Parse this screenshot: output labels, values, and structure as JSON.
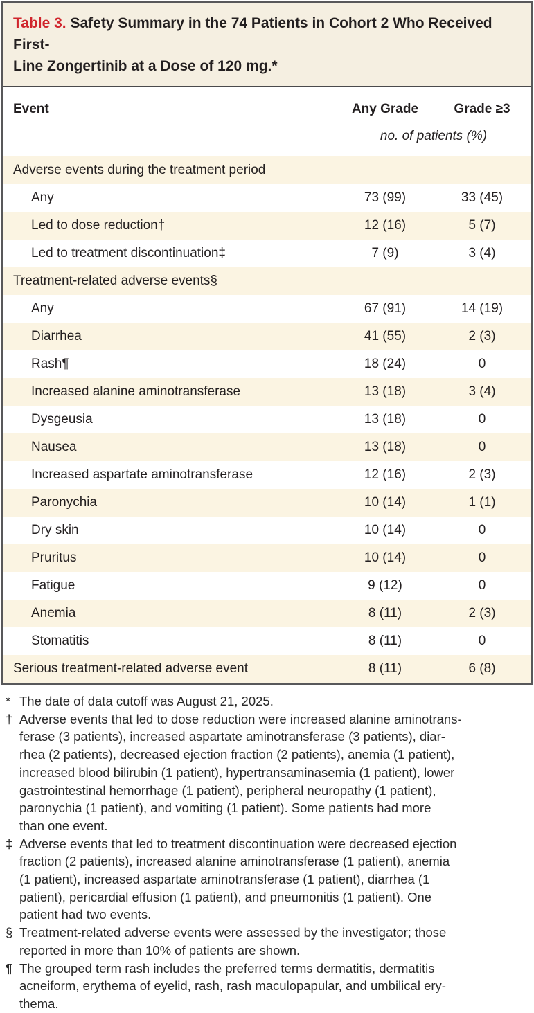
{
  "title": {
    "label": "Table 3.",
    "text": "Safety Summary in the 74 Patients in Cohort 2 Who Received First-\nLine Zongertinib at a Dose of 120 mg.*"
  },
  "table": {
    "columns": [
      "Event",
      "Any Grade",
      "Grade ≥3"
    ],
    "units_note": "no. of patients (%)",
    "rows": [
      {
        "label": "Adverse events during the treatment period",
        "any_grade": "",
        "grade_ge3": ""
      },
      {
        "label": "Any",
        "any_grade": "73 (99)",
        "grade_ge3": "33 (45)"
      },
      {
        "label": "Led to dose reduction†",
        "any_grade": "12 (16)",
        "grade_ge3": "5 (7)"
      },
      {
        "label": "Led to treatment discontinuation‡",
        "any_grade": "7 (9)",
        "grade_ge3": "3 (4)"
      },
      {
        "label": "Treatment-related adverse events§",
        "any_grade": "",
        "grade_ge3": ""
      },
      {
        "label": "Any",
        "any_grade": "67 (91)",
        "grade_ge3": "14 (19)"
      },
      {
        "label": "Diarrhea",
        "any_grade": "41 (55)",
        "grade_ge3": "2 (3)"
      },
      {
        "label": "Rash¶",
        "any_grade": "18 (24)",
        "grade_ge3": "0"
      },
      {
        "label": "Increased alanine aminotransferase",
        "any_grade": "13 (18)",
        "grade_ge3": "3 (4)"
      },
      {
        "label": "Dysgeusia",
        "any_grade": "13 (18)",
        "grade_ge3": "0"
      },
      {
        "label": "Nausea",
        "any_grade": "13 (18)",
        "grade_ge3": "0"
      },
      {
        "label": "Increased aspartate aminotransferase",
        "any_grade": "12 (16)",
        "grade_ge3": "2 (3)"
      },
      {
        "label": "Paronychia",
        "any_grade": "10 (14)",
        "grade_ge3": "1 (1)"
      },
      {
        "label": "Dry skin",
        "any_grade": "10 (14)",
        "grade_ge3": "0"
      },
      {
        "label": "Pruritus",
        "any_grade": "10 (14)",
        "grade_ge3": "0"
      },
      {
        "label": "Fatigue",
        "any_grade": "9 (12)",
        "grade_ge3": "0"
      },
      {
        "label": "Anemia",
        "any_grade": "8 (11)",
        "grade_ge3": "2 (3)"
      },
      {
        "label": "Stomatitis",
        "any_grade": "8 (11)",
        "grade_ge3": "0"
      },
      {
        "label": "Serious treatment-related adverse event",
        "any_grade": "8 (11)",
        "grade_ge3": "6 (8)"
      }
    ]
  },
  "footnotes": [
    {
      "symbol": "*",
      "text": "The date of data cutoff was August 21, 2025."
    },
    {
      "symbol": "†",
      "text": "Adverse events that led to dose reduction were increased alanine aminotrans-\nferase (3 patients), increased aspartate aminotransferase (3 patients), diar-\nrhea (2 patients), decreased ejection fraction (2 patients), anemia (1 patient),\nincreased blood bilirubin (1 patient), hypertransaminasemia (1 patient), lower\ngastrointestinal hemorrhage (1 patient), peripheral neuropathy (1 patient),\nparonychia (1 patient), and vomiting (1 patient). Some patients had more\nthan one event."
    },
    {
      "symbol": "‡",
      "text": "Adverse events that led to treatment discontinuation were decreased ejection\nfraction (2 patients), increased alanine aminotransferase (1 patient), anemia\n(1 patient), increased aspartate aminotransferase (1 patient), diarrhea (1\npatient), pericardial effusion (1 patient), and pneumonitis (1 patient). One\npatient had two events."
    },
    {
      "symbol": "§",
      "text": "Treatment-related adverse events were assessed by the investigator; those\nreported in more than 10% of patients are shown."
    },
    {
      "symbol": "¶",
      "text": "The grouped term rash includes the preferred terms dermatitis, dermatitis\nacneiform, erythema of eyelid, rash, rash maculopapular, and umbilical ery-\nthema."
    }
  ],
  "colors": {
    "accent_red": "#d0252c",
    "table_border": "#58585a",
    "stripe_cream": "#fbf4e2",
    "title_bg": "#f5efe1",
    "text": "#231f20"
  }
}
